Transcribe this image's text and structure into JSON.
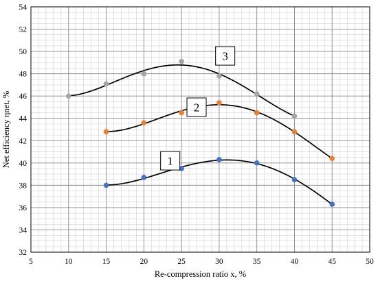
{
  "chart_data": {
    "type": "scatter",
    "xlabel": "Re-compression ratio x, %",
    "ylabel": "Net efficiency ηnet, %",
    "xlim": [
      5,
      50
    ],
    "ylim": [
      32,
      54
    ],
    "xticks": [
      5,
      10,
      15,
      20,
      25,
      30,
      35,
      40,
      45,
      50
    ],
    "yticks": [
      32,
      34,
      36,
      38,
      40,
      42,
      44,
      46,
      48,
      50,
      52,
      54
    ],
    "grid": true,
    "minor_grid": true,
    "series": [
      {
        "label": "1",
        "color": "#4472C4",
        "x": [
          15,
          20,
          25,
          30,
          35,
          40,
          45
        ],
        "y": [
          38.0,
          38.7,
          39.5,
          40.3,
          40.0,
          38.5,
          36.3
        ]
      },
      {
        "label": "2",
        "color": "#ED7D31",
        "x": [
          15,
          20,
          25,
          30,
          35,
          40,
          45
        ],
        "y": [
          42.8,
          43.6,
          44.5,
          45.4,
          44.5,
          42.8,
          40.4
        ]
      },
      {
        "label": "3",
        "color": "#A5A5A5",
        "x": [
          10,
          15,
          20,
          25,
          30,
          35,
          40
        ],
        "y": [
          46.0,
          47.1,
          48.0,
          49.1,
          47.8,
          46.2,
          44.2
        ]
      }
    ],
    "trend_lines": [
      {
        "series": "1",
        "x_range": [
          15,
          45
        ]
      },
      {
        "series": "2",
        "x_range": [
          15,
          45
        ]
      },
      {
        "series": "3",
        "x_range": [
          10,
          40
        ]
      }
    ],
    "annotations": [
      {
        "text": "1",
        "x": 23.5,
        "y": 40.2
      },
      {
        "text": "2",
        "x": 27.0,
        "y": 45.0
      },
      {
        "text": "3",
        "x": 30.8,
        "y": 49.6
      }
    ]
  }
}
